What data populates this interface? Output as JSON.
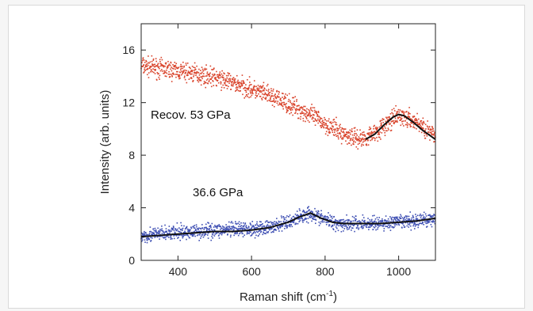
{
  "chart_data": {
    "type": "scatter",
    "title": "",
    "xlabel": "Raman shift (cm",
    "xlabel_sup": "-1",
    "xlabel_tail": ")",
    "ylabel": "Intensity (arb. units)",
    "xlim": [
      300,
      1100
    ],
    "ylim": [
      0,
      18
    ],
    "x_ticks": [
      400,
      600,
      800,
      1000
    ],
    "y_ticks": [
      0,
      4,
      8,
      12,
      16
    ],
    "grid": false,
    "legend": "none",
    "annotations": [
      {
        "text": "Recov. 53 GPa"
      },
      {
        "text": "36.6 GPa"
      }
    ],
    "series": [
      {
        "kind": "points",
        "color": "#d9442c",
        "points_x": [
          300,
          350,
          400,
          450,
          500,
          550,
          600,
          650,
          700,
          750,
          800,
          850,
          900,
          950,
          1000,
          1050,
          1100
        ],
        "points_y": [
          14.8,
          14.6,
          14.4,
          14.2,
          13.9,
          13.5,
          13.0,
          12.5,
          11.9,
          11.2,
          10.4,
          9.6,
          9.2,
          10.0,
          11.0,
          10.5,
          9.4
        ],
        "noise": 0.7
      },
      {
        "kind": "fit",
        "color": "#111111",
        "points_x": [
          910,
          935,
          960,
          985,
          1000,
          1015,
          1040,
          1065,
          1090,
          1100
        ],
        "points_y": [
          9.2,
          9.6,
          10.3,
          10.9,
          11.1,
          11.0,
          10.5,
          9.9,
          9.4,
          9.2
        ]
      },
      {
        "kind": "points",
        "color": "#3e4fb3",
        "points_x": [
          300,
          350,
          400,
          450,
          500,
          550,
          600,
          650,
          700,
          730,
          760,
          790,
          820,
          850,
          900,
          950,
          1000,
          1050,
          1100
        ],
        "points_y": [
          1.9,
          2.0,
          2.1,
          2.2,
          2.3,
          2.3,
          2.4,
          2.5,
          2.9,
          3.3,
          3.6,
          3.2,
          2.9,
          2.8,
          2.8,
          2.8,
          2.9,
          3.0,
          3.2
        ],
        "noise": 0.55
      },
      {
        "kind": "fit",
        "color": "#111111",
        "points_x": [
          300,
          350,
          400,
          450,
          500,
          550,
          600,
          650,
          700,
          730,
          760,
          790,
          820,
          850,
          900,
          950,
          1000,
          1050,
          1100
        ],
        "points_y": [
          1.8,
          1.9,
          2.0,
          2.1,
          2.2,
          2.2,
          2.3,
          2.5,
          2.9,
          3.3,
          3.6,
          3.2,
          2.9,
          2.8,
          2.8,
          2.8,
          2.9,
          3.0,
          3.2
        ]
      }
    ]
  }
}
